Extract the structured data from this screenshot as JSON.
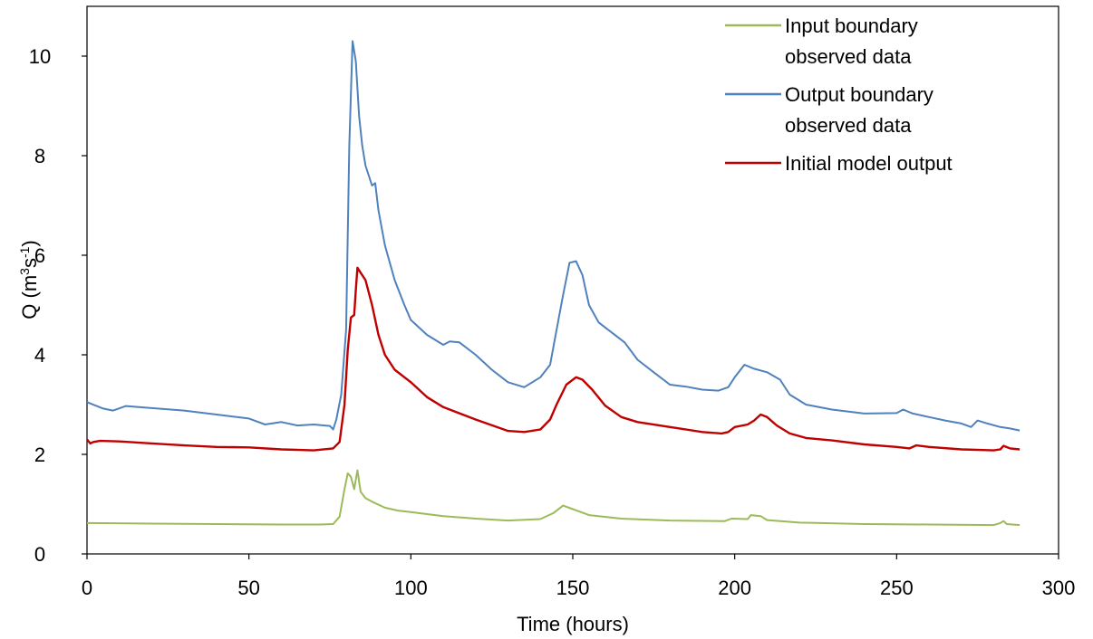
{
  "chart_data": {
    "type": "line",
    "xlabel": "Time (hours)",
    "ylabel": {
      "base": "Q (m",
      "sup1": "3",
      "mid": "s",
      "sup2": "-1",
      "end": ")"
    },
    "xlim": [
      0,
      300
    ],
    "ylim": [
      0,
      11
    ],
    "xticks": [
      0,
      50,
      100,
      150,
      200,
      250,
      300
    ],
    "yticks": [
      0,
      2,
      4,
      6,
      8,
      10
    ],
    "grid": false,
    "legend_position": "top-right",
    "series": [
      {
        "name": [
          "Input boundary",
          "observed data"
        ],
        "color": "#9bbb59",
        "points": [
          [
            0,
            0.62
          ],
          [
            20,
            0.61
          ],
          [
            40,
            0.6
          ],
          [
            60,
            0.59
          ],
          [
            72,
            0.59
          ],
          [
            76,
            0.6
          ],
          [
            78,
            0.75
          ],
          [
            79.5,
            1.3
          ],
          [
            80.5,
            1.62
          ],
          [
            81.5,
            1.55
          ],
          [
            82.5,
            1.3
          ],
          [
            83.5,
            1.68
          ],
          [
            84.5,
            1.25
          ],
          [
            86,
            1.12
          ],
          [
            88,
            1.05
          ],
          [
            92,
            0.93
          ],
          [
            96,
            0.87
          ],
          [
            100,
            0.84
          ],
          [
            110,
            0.76
          ],
          [
            120,
            0.71
          ],
          [
            130,
            0.67
          ],
          [
            140,
            0.7
          ],
          [
            144,
            0.82
          ],
          [
            147,
            0.97
          ],
          [
            150,
            0.9
          ],
          [
            155,
            0.78
          ],
          [
            165,
            0.71
          ],
          [
            180,
            0.67
          ],
          [
            197,
            0.66
          ],
          [
            199,
            0.71
          ],
          [
            204,
            0.7
          ],
          [
            205,
            0.78
          ],
          [
            208,
            0.76
          ],
          [
            210,
            0.68
          ],
          [
            220,
            0.63
          ],
          [
            240,
            0.6
          ],
          [
            260,
            0.59
          ],
          [
            280,
            0.58
          ],
          [
            282,
            0.62
          ],
          [
            283,
            0.66
          ],
          [
            284,
            0.6
          ],
          [
            288,
            0.58
          ]
        ]
      },
      {
        "name": [
          "Output boundary",
          "observed data"
        ],
        "color": "#4f81bd",
        "points": [
          [
            0,
            3.05
          ],
          [
            5,
            2.92
          ],
          [
            8,
            2.88
          ],
          [
            12,
            2.97
          ],
          [
            20,
            2.93
          ],
          [
            30,
            2.88
          ],
          [
            40,
            2.8
          ],
          [
            50,
            2.72
          ],
          [
            55,
            2.6
          ],
          [
            60,
            2.65
          ],
          [
            65,
            2.58
          ],
          [
            70,
            2.6
          ],
          [
            75,
            2.57
          ],
          [
            76,
            2.5
          ],
          [
            77,
            2.7
          ],
          [
            78.5,
            3.2
          ],
          [
            80,
            4.5
          ],
          [
            81,
            8.2
          ],
          [
            82,
            10.3
          ],
          [
            83,
            9.9
          ],
          [
            84,
            8.8
          ],
          [
            85,
            8.2
          ],
          [
            86,
            7.8
          ],
          [
            87,
            7.6
          ],
          [
            88,
            7.4
          ],
          [
            89,
            7.45
          ],
          [
            90,
            6.9
          ],
          [
            92,
            6.2
          ],
          [
            95,
            5.5
          ],
          [
            98,
            5.0
          ],
          [
            100,
            4.7
          ],
          [
            105,
            4.4
          ],
          [
            110,
            4.2
          ],
          [
            112,
            4.27
          ],
          [
            115,
            4.25
          ],
          [
            120,
            4.0
          ],
          [
            125,
            3.7
          ],
          [
            130,
            3.45
          ],
          [
            135,
            3.35
          ],
          [
            140,
            3.55
          ],
          [
            143,
            3.8
          ],
          [
            145,
            4.5
          ],
          [
            147,
            5.2
          ],
          [
            149,
            5.85
          ],
          [
            151,
            5.88
          ],
          [
            153,
            5.6
          ],
          [
            155,
            5.0
          ],
          [
            158,
            4.65
          ],
          [
            162,
            4.45
          ],
          [
            166,
            4.25
          ],
          [
            170,
            3.9
          ],
          [
            175,
            3.65
          ],
          [
            180,
            3.4
          ],
          [
            185,
            3.36
          ],
          [
            190,
            3.3
          ],
          [
            195,
            3.28
          ],
          [
            198,
            3.35
          ],
          [
            200,
            3.55
          ],
          [
            203,
            3.8
          ],
          [
            206,
            3.72
          ],
          [
            210,
            3.65
          ],
          [
            214,
            3.5
          ],
          [
            217,
            3.2
          ],
          [
            222,
            3.0
          ],
          [
            230,
            2.9
          ],
          [
            240,
            2.82
          ],
          [
            250,
            2.83
          ],
          [
            252,
            2.9
          ],
          [
            255,
            2.82
          ],
          [
            260,
            2.75
          ],
          [
            265,
            2.68
          ],
          [
            270,
            2.62
          ],
          [
            273,
            2.55
          ],
          [
            275,
            2.68
          ],
          [
            278,
            2.62
          ],
          [
            282,
            2.55
          ],
          [
            285,
            2.52
          ],
          [
            288,
            2.48
          ]
        ]
      },
      {
        "name": [
          "Initial model output"
        ],
        "color": "#c00000",
        "points": [
          [
            0,
            2.3
          ],
          [
            1,
            2.22
          ],
          [
            2,
            2.25
          ],
          [
            4,
            2.27
          ],
          [
            10,
            2.26
          ],
          [
            20,
            2.22
          ],
          [
            30,
            2.18
          ],
          [
            40,
            2.15
          ],
          [
            50,
            2.14
          ],
          [
            60,
            2.1
          ],
          [
            70,
            2.08
          ],
          [
            76,
            2.12
          ],
          [
            78,
            2.25
          ],
          [
            79.5,
            3.0
          ],
          [
            80.5,
            4.1
          ],
          [
            81.5,
            4.75
          ],
          [
            82.5,
            4.8
          ],
          [
            83,
            5.3
          ],
          [
            83.5,
            5.75
          ],
          [
            84.5,
            5.65
          ],
          [
            86,
            5.5
          ],
          [
            88,
            5.0
          ],
          [
            90,
            4.4
          ],
          [
            92,
            4.0
          ],
          [
            95,
            3.7
          ],
          [
            100,
            3.45
          ],
          [
            105,
            3.15
          ],
          [
            110,
            2.95
          ],
          [
            120,
            2.7
          ],
          [
            130,
            2.47
          ],
          [
            135,
            2.45
          ],
          [
            140,
            2.5
          ],
          [
            143,
            2.7
          ],
          [
            145,
            3.0
          ],
          [
            148,
            3.4
          ],
          [
            151,
            3.55
          ],
          [
            153,
            3.5
          ],
          [
            156,
            3.3
          ],
          [
            160,
            2.98
          ],
          [
            165,
            2.75
          ],
          [
            170,
            2.65
          ],
          [
            180,
            2.55
          ],
          [
            190,
            2.45
          ],
          [
            196,
            2.42
          ],
          [
            198,
            2.45
          ],
          [
            200,
            2.55
          ],
          [
            204,
            2.6
          ],
          [
            206,
            2.68
          ],
          [
            208,
            2.8
          ],
          [
            210,
            2.75
          ],
          [
            213,
            2.58
          ],
          [
            217,
            2.42
          ],
          [
            222,
            2.33
          ],
          [
            230,
            2.28
          ],
          [
            240,
            2.2
          ],
          [
            250,
            2.15
          ],
          [
            254,
            2.12
          ],
          [
            256,
            2.18
          ],
          [
            260,
            2.15
          ],
          [
            270,
            2.1
          ],
          [
            280,
            2.08
          ],
          [
            282,
            2.1
          ],
          [
            283,
            2.17
          ],
          [
            285,
            2.12
          ],
          [
            288,
            2.1
          ]
        ]
      }
    ]
  }
}
